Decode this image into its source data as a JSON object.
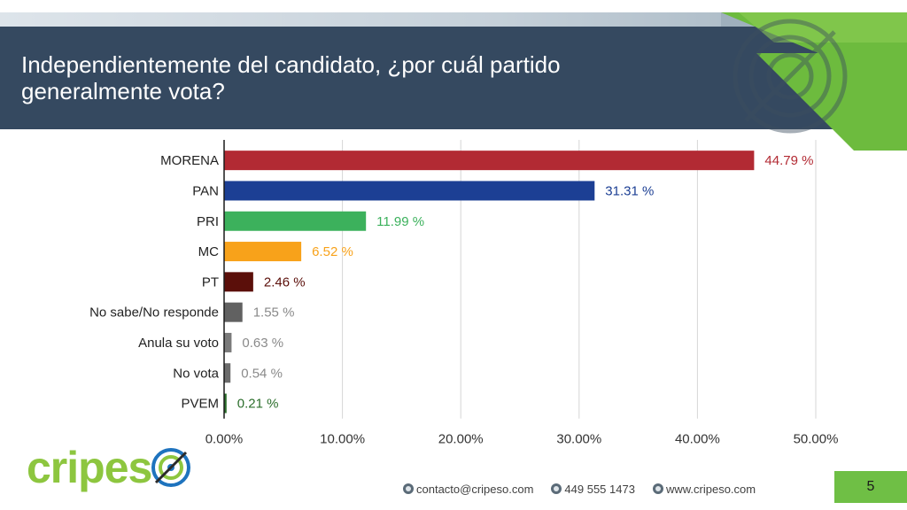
{
  "slide": {
    "title": "Independientemente del candidato, ¿por cuál partido generalmente vota?",
    "page_number": "5"
  },
  "logo": {
    "part1": "cripes",
    "part2": ""
  },
  "footer": {
    "email": "contacto@cripeso.com",
    "phone": "449 555 1473",
    "website": "www.cripeso.com"
  },
  "colors": {
    "title_band": "#354960",
    "accent_green": "#6fbf45"
  },
  "chart_data": {
    "type": "bar",
    "orientation": "horizontal",
    "categories": [
      "MORENA",
      "PAN",
      "PRI",
      "MC",
      "PT",
      "No sabe/No responde",
      "Anula su voto",
      "No vota",
      "PVEM"
    ],
    "values": [
      44.79,
      31.31,
      11.99,
      6.52,
      2.46,
      1.55,
      0.63,
      0.54,
      0.21
    ],
    "value_labels": [
      "44.79 %",
      "31.31 %",
      "11.99 %",
      "6.52 %",
      "2.46 %",
      "1.55 %",
      "0.63 %",
      "0.54 %",
      "0.21 %"
    ],
    "colors": [
      "#b22a33",
      "#1c3f94",
      "#3cb15c",
      "#f8a21a",
      "#5b0f0a",
      "#616161",
      "#7a7a7a",
      "#6c6c6c",
      "#2b6e2b"
    ],
    "label_colors": [
      "#b22a33",
      "#1c3f94",
      "#3cb15c",
      "#f8a21a",
      "#5b0f0a",
      "#8a8a8a",
      "#8a8a8a",
      "#8a8a8a",
      "#2b6e2b"
    ],
    "xlim": [
      0,
      50
    ],
    "xticks": [
      0,
      10,
      20,
      30,
      40,
      50
    ],
    "xtick_labels": [
      "0.00%",
      "10.00%",
      "20.00%",
      "30.00%",
      "40.00%",
      "50.00%"
    ],
    "grid": true,
    "title": "",
    "xlabel": "",
    "ylabel": ""
  }
}
